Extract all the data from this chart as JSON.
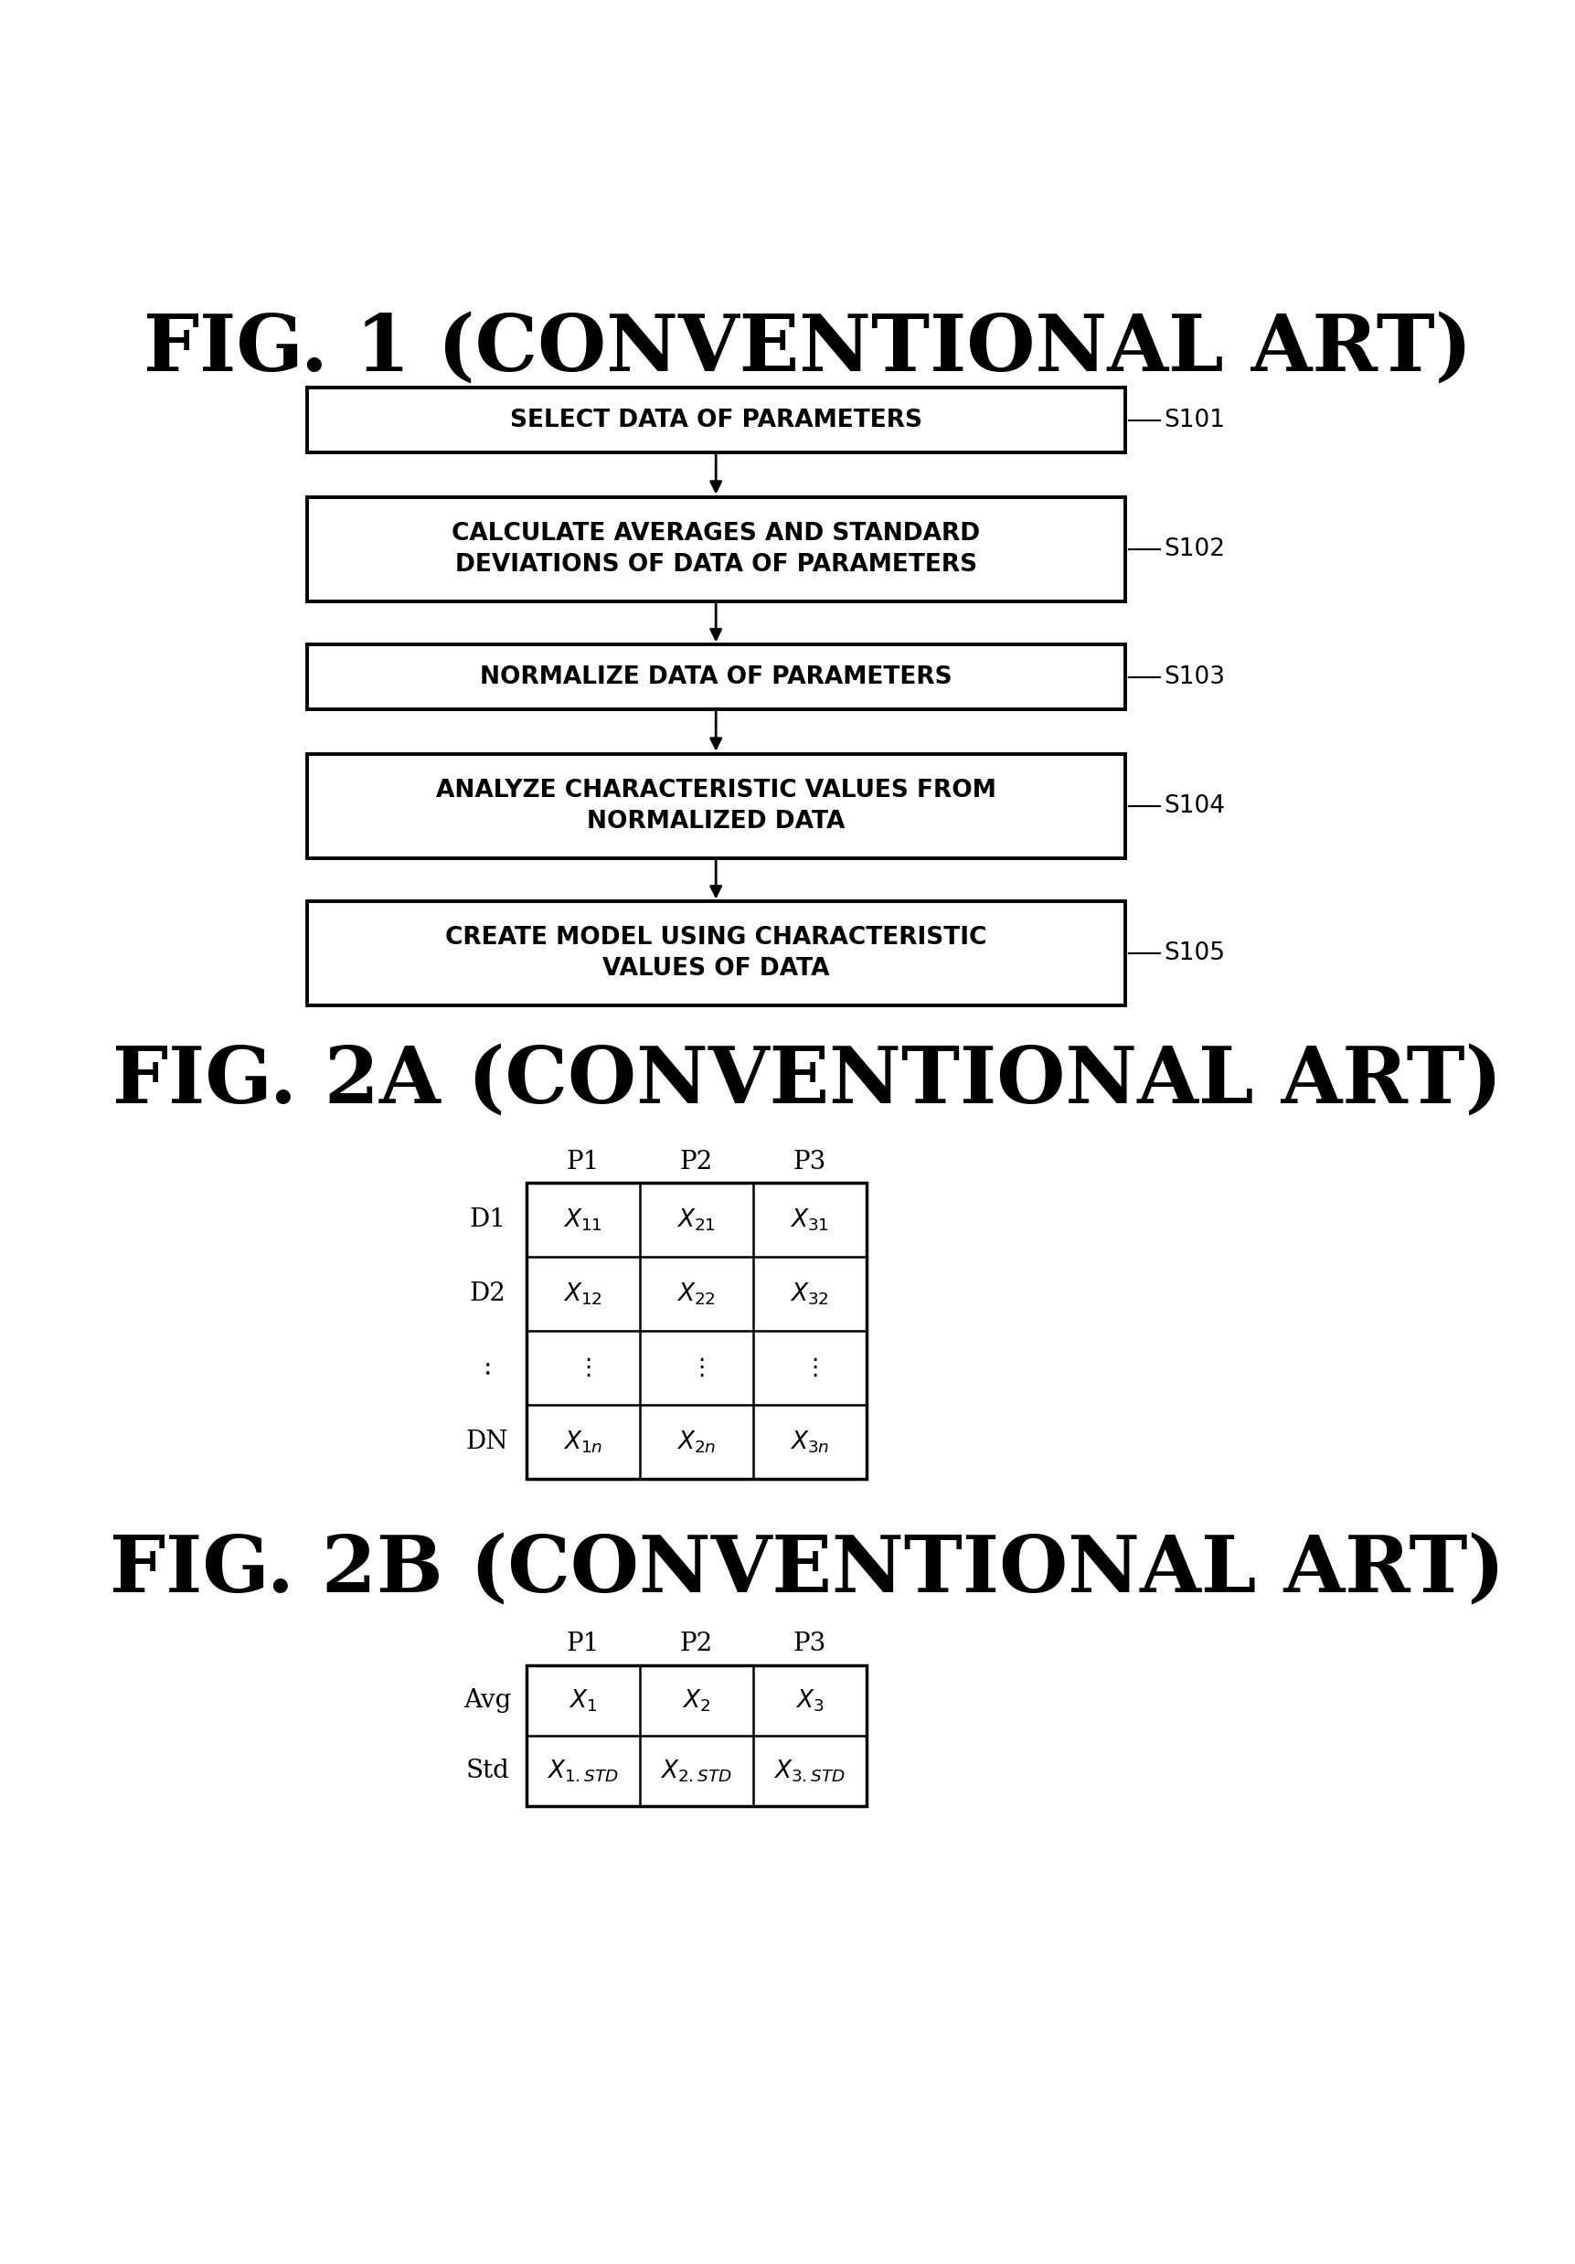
{
  "fig_title": "FIG. 1 (CONVENTIONAL ART)",
  "fig2a_title": "FIG. 2A (CONVENTIONAL ART)",
  "fig2b_title": "FIG. 2B (CONVENTIONAL ART)",
  "flowchart_boxes": [
    {
      "label": "SELECT DATA OF PARAMETERS",
      "step": "S101",
      "lines": 1
    },
    {
      "label": "CALCULATE AVERAGES AND STANDARD\nDEVIATIONS OF DATA OF PARAMETERS",
      "step": "S102",
      "lines": 2
    },
    {
      "label": "NORMALIZE DATA OF PARAMETERS",
      "step": "S103",
      "lines": 1
    },
    {
      "label": "ANALYZE CHARACTERISTIC VALUES FROM\nNORMALIZED DATA",
      "step": "S104",
      "lines": 2
    },
    {
      "label": "CREATE MODEL USING CHARACTERISTIC\nVALUES OF DATA",
      "step": "S105",
      "lines": 2
    }
  ],
  "bg_color": "#ffffff",
  "box_edge_color": "#000000",
  "text_color": "#000000",
  "table2a_cols": [
    "P1",
    "P2",
    "P3"
  ],
  "table2a_rows": [
    "D1",
    "D2",
    ":",
    "DN"
  ],
  "table2b_cols": [
    "P1",
    "P2",
    "P3"
  ],
  "table2b_rows": [
    "Avg",
    "Std"
  ]
}
